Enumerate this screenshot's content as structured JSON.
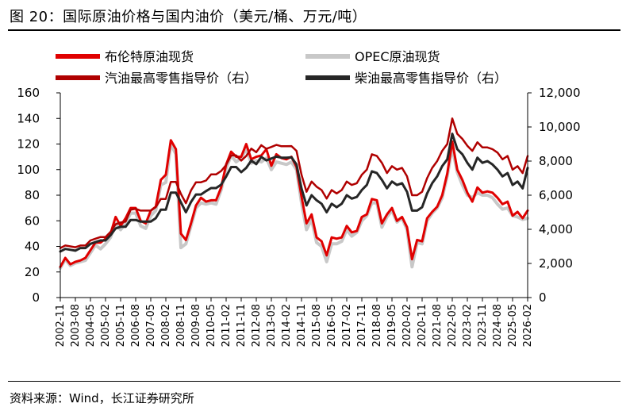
{
  "header": {
    "title": "图 20：国际原油价格与国内油价（美元/桶、万元/吨）"
  },
  "footer": {
    "source": "资料来源：Wind，长江证券研究所"
  },
  "colors": {
    "brent": "#e00000",
    "opec": "#c8c8c8",
    "gasoline": "#b00000",
    "diesel": "#262626"
  },
  "chart_data": {
    "type": "line",
    "x": [
      "2002-11",
      "2003-02",
      "2003-05",
      "2003-08",
      "2003-11",
      "2004-02",
      "2004-05",
      "2004-08",
      "2004-11",
      "2005-02",
      "2005-05",
      "2005-08",
      "2005-11",
      "2006-02",
      "2006-05",
      "2006-08",
      "2006-11",
      "2007-02",
      "2007-05",
      "2007-08",
      "2007-11",
      "2008-02",
      "2008-05",
      "2008-08",
      "2008-11",
      "2009-02",
      "2009-05",
      "2009-08",
      "2009-11",
      "2010-02",
      "2010-05",
      "2010-08",
      "2010-11",
      "2011-02",
      "2011-05",
      "2011-08",
      "2011-11",
      "2012-02",
      "2012-05",
      "2012-08",
      "2012-11",
      "2013-02",
      "2013-05",
      "2013-08",
      "2013-11",
      "2014-02",
      "2014-05",
      "2014-08",
      "2014-11",
      "2015-02",
      "2015-05",
      "2015-08",
      "2015-11",
      "2016-02",
      "2016-05",
      "2016-08",
      "2016-11",
      "2017-02",
      "2017-05",
      "2017-08",
      "2017-11",
      "2018-02",
      "2018-05",
      "2018-08",
      "2018-11",
      "2019-02",
      "2019-05",
      "2019-08",
      "2019-11",
      "2020-02",
      "2020-05",
      "2020-08",
      "2020-11",
      "2021-02",
      "2021-05",
      "2021-08",
      "2021-11",
      "2022-02",
      "2022-05",
      "2022-08",
      "2022-11",
      "2023-02",
      "2023-05",
      "2023-08",
      "2023-11",
      "2024-02",
      "2024-05",
      "2024-08",
      "2024-11",
      "2025-02",
      "2025-05",
      "2025-08",
      "2025-11",
      "2026-02"
    ],
    "x_tick_labels": [
      "2002-11",
      "2003-08",
      "2004-05",
      "2005-02",
      "2005-11",
      "2006-08",
      "2007-05",
      "2008-02",
      "2008-11",
      "2009-08",
      "2010-05",
      "2011-02",
      "2011-11",
      "2012-08",
      "2013-05",
      "2014-02",
      "2014-11",
      "2015-08",
      "2016-05",
      "2017-02",
      "2017-11",
      "2018-08",
      "2019-05",
      "2020-02",
      "2020-11",
      "2021-08",
      "2022-05",
      "2023-02",
      "2023-11",
      "2024-08",
      "2025-05",
      "2026-02"
    ],
    "y_left": {
      "min": 0,
      "max": 160,
      "ticks": [
        0,
        20,
        40,
        60,
        80,
        100,
        120,
        140,
        160
      ]
    },
    "y_right": {
      "min": 0,
      "max": 12000,
      "ticks": [
        0,
        2000,
        4000,
        6000,
        8000,
        10000,
        12000
      ],
      "tick_labels": [
        "0",
        "2,000",
        "4,000",
        "6,000",
        "8,000",
        "10,000",
        "12,000"
      ]
    },
    "legend_position": "top",
    "series": [
      {
        "name": "布伦特原油现货",
        "axis": "left",
        "color": "#e00000",
        "values": [
          24,
          31,
          26,
          28,
          29,
          31,
          37,
          43,
          43,
          46,
          50,
          63,
          56,
          62,
          70,
          70,
          60,
          58,
          68,
          71,
          92,
          96,
          123,
          116,
          50,
          45,
          58,
          72,
          78,
          75,
          76,
          76,
          86,
          104,
          114,
          110,
          110,
          120,
          108,
          110,
          111,
          116,
          103,
          112,
          109,
          108,
          110,
          102,
          79,
          58,
          65,
          47,
          44,
          33,
          47,
          46,
          47,
          56,
          51,
          52,
          63,
          65,
          77,
          76,
          58,
          65,
          70,
          60,
          63,
          55,
          30,
          45,
          44,
          62,
          67,
          71,
          80,
          97,
          122,
          100,
          92,
          82,
          75,
          86,
          82,
          83,
          82,
          78,
          73,
          75,
          64,
          67,
          62,
          68
        ]
      },
      {
        "name": "OPEC原油现货",
        "axis": "left",
        "color": "#c8c8c8",
        "values": [
          23,
          30,
          25,
          27,
          28,
          29,
          35,
          41,
          38,
          42,
          47,
          58,
          53,
          58,
          66,
          66,
          56,
          54,
          64,
          68,
          88,
          90,
          120,
          112,
          39,
          42,
          56,
          70,
          74,
          73,
          74,
          73,
          84,
          101,
          111,
          106,
          109,
          116,
          105,
          107,
          106,
          109,
          100,
          106,
          105,
          104,
          106,
          100,
          74,
          53,
          61,
          43,
          40,
          28,
          42,
          42,
          44,
          53,
          48,
          51,
          60,
          64,
          74,
          74,
          55,
          63,
          68,
          59,
          62,
          53,
          24,
          43,
          42,
          60,
          66,
          70,
          78,
          95,
          117,
          98,
          88,
          80,
          78,
          82,
          80,
          80,
          78,
          73,
          69,
          70,
          64,
          63,
          61,
          62
        ]
      },
      {
        "name": "汽油最高零售指导价（右）",
        "axis": "right",
        "color": "#b00000",
        "values": [
          2900,
          3050,
          3000,
          2950,
          3050,
          3050,
          3350,
          3450,
          3550,
          3550,
          3850,
          4300,
          4400,
          4450,
          5150,
          5200,
          5100,
          5100,
          5100,
          5300,
          5780,
          5780,
          6780,
          6780,
          6080,
          5530,
          6280,
          6760,
          6760,
          6860,
          7220,
          7220,
          7420,
          7770,
          8330,
          8330,
          8030,
          8300,
          8730,
          8520,
          8930,
          8720,
          8830,
          8950,
          8870,
          8870,
          8880,
          8600,
          7200,
          6200,
          6800,
          6500,
          6300,
          5800,
          6300,
          6100,
          6300,
          6800,
          6600,
          6700,
          7200,
          7500,
          8400,
          8300,
          7900,
          7300,
          7700,
          7500,
          7600,
          7100,
          6000,
          6000,
          6200,
          7000,
          7600,
          8000,
          8600,
          9000,
          10500,
          9600,
          9300,
          8900,
          8600,
          9100,
          8800,
          8800,
          8700,
          8500,
          8100,
          8300,
          7500,
          7700,
          7300,
          8300
        ]
      },
      {
        "name": "柴油最高零售指导价（右）",
        "axis": "right",
        "color": "#262626",
        "values": [
          2700,
          2850,
          2800,
          2750,
          2900,
          2900,
          3150,
          3250,
          3350,
          3350,
          3650,
          4050,
          4150,
          4150,
          4550,
          4550,
          4450,
          4450,
          4450,
          4650,
          5150,
          5150,
          6150,
          6150,
          5580,
          5000,
          5600,
          6040,
          6040,
          6240,
          6420,
          6420,
          6620,
          7090,
          7650,
          7650,
          7350,
          7600,
          8030,
          7820,
          8240,
          8040,
          8150,
          8260,
          8200,
          8200,
          8220,
          7800,
          6400,
          5400,
          6000,
          5700,
          5500,
          5000,
          5500,
          5300,
          5500,
          6000,
          5800,
          5900,
          6300,
          6600,
          7400,
          7300,
          6900,
          6400,
          6800,
          6600,
          6700,
          6200,
          5100,
          5100,
          5300,
          6100,
          6700,
          7100,
          7700,
          8100,
          9600,
          8700,
          8400,
          7900,
          7500,
          8200,
          7900,
          8000,
          7800,
          7500,
          7100,
          7300,
          6600,
          6800,
          6400,
          7600
        ]
      }
    ]
  }
}
